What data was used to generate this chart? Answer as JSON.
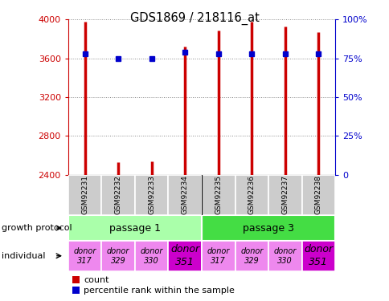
{
  "title": "GDS1869 / 218116_at",
  "samples": [
    "GSM92231",
    "GSM92232",
    "GSM92233",
    "GSM92234",
    "GSM92235",
    "GSM92236",
    "GSM92237",
    "GSM92238"
  ],
  "counts": [
    3980,
    2530,
    2540,
    3720,
    3890,
    3980,
    3930,
    3870
  ],
  "percentiles": [
    78,
    75,
    75,
    79,
    78,
    78,
    78,
    78
  ],
  "y_min": 2400,
  "y_max": 4000,
  "y_ticks": [
    2400,
    2800,
    3200,
    3600,
    4000
  ],
  "pct_ticks": [
    0,
    25,
    50,
    75,
    100
  ],
  "bar_color": "#cc0000",
  "dot_color": "#0000cc",
  "passage1_color": "#aaffaa",
  "passage3_color": "#44dd44",
  "donor_light_color": "#ee88ee",
  "donor_dark_color": "#cc00cc",
  "sample_box_color": "#cccccc",
  "bg_color": "#ffffff",
  "grid_color": "#888888",
  "left_axis_color": "#cc0000",
  "right_axis_color": "#0000cc",
  "donor_labels": [
    "donor\n317",
    "donor\n329",
    "donor\n330",
    "donor\n351",
    "donor\n317",
    "donor\n329",
    "donor\n330",
    "donor\n351"
  ],
  "donor_is_dark": [
    false,
    false,
    false,
    true,
    false,
    false,
    false,
    true
  ]
}
